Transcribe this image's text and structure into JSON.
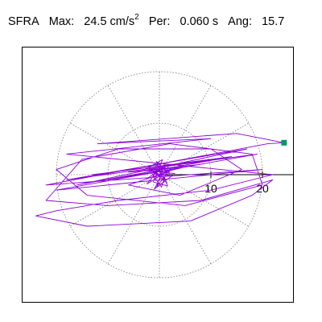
{
  "header": {
    "station": "SFRA",
    "max_label": "Max:",
    "max_value": "24.5",
    "max_unit": "cm/s",
    "max_unit_exp": "2",
    "per_label": "Per:",
    "per_value": "0.060 s",
    "ang_label": "Ang:",
    "ang_value": "15.7"
  },
  "chart_data": {
    "type": "scatter",
    "title": "",
    "xlabel": "",
    "ylabel": "",
    "polar_grid": true,
    "ring_ticks": [
      10,
      20
    ],
    "ring_radii": [
      10,
      20
    ],
    "spoke_count": 12,
    "xlim": [
      -24,
      27
    ],
    "grid": true,
    "trace_color": "#8c00d4",
    "marker_color": "#009966",
    "max_point": {
      "x": 24.2,
      "y": 6.2
    },
    "trace": [
      {
        "x": 0,
        "y": 0
      },
      {
        "x": -2,
        "y": 1.2
      },
      {
        "x": 1.5,
        "y": -1.6
      },
      {
        "x": -1,
        "y": 2
      },
      {
        "x": 2,
        "y": 0.6
      },
      {
        "x": -2.5,
        "y": -0.8
      },
      {
        "x": 1.8,
        "y": 1.9
      },
      {
        "x": 0.4,
        "y": -2.4
      },
      {
        "x": -1.6,
        "y": 0.4
      },
      {
        "x": 2.4,
        "y": -0.3
      },
      {
        "x": -0.6,
        "y": 2.6
      },
      {
        "x": 0.9,
        "y": -1.1
      },
      {
        "x": -2.2,
        "y": 1.6
      },
      {
        "x": 1,
        "y": 2.2
      },
      {
        "x": -0.5,
        "y": -2.3
      },
      {
        "x": 2.2,
        "y": 1.1
      },
      {
        "x": -2.4,
        "y": -1.8
      },
      {
        "x": 0.2,
        "y": 1.5
      },
      {
        "x": 1.6,
        "y": -2.2
      },
      {
        "x": -1.2,
        "y": -1.4
      },
      {
        "x": 0.6,
        "y": 2.9
      },
      {
        "x": -3,
        "y": 0.9
      },
      {
        "x": 3,
        "y": 0.2
      },
      {
        "x": -1,
        "y": -2.8
      },
      {
        "x": 0.8,
        "y": 0.5
      },
      {
        "x": 5,
        "y": 1.5
      },
      {
        "x": -6,
        "y": 0.5
      },
      {
        "x": 8,
        "y": 2
      },
      {
        "x": -10,
        "y": -1
      },
      {
        "x": 11,
        "y": 3
      },
      {
        "x": -13,
        "y": 0
      },
      {
        "x": 14,
        "y": 3.5
      },
      {
        "x": -16,
        "y": -2
      },
      {
        "x": 17,
        "y": 5
      },
      {
        "x": -18,
        "y": -1
      },
      {
        "x": 19,
        "y": 4
      },
      {
        "x": -20,
        "y": -3
      },
      {
        "x": 20,
        "y": 1
      },
      {
        "x": -22,
        "y": -2
      },
      {
        "x": 21,
        "y": 6
      },
      {
        "x": 24.2,
        "y": 6.2
      },
      {
        "x": 15,
        "y": 8
      },
      {
        "x": -12,
        "y": 6
      },
      {
        "x": 10,
        "y": 7
      },
      {
        "x": -18,
        "y": 4
      },
      {
        "x": 22,
        "y": 0
      },
      {
        "x": 10,
        "y": -3
      },
      {
        "x": -8,
        "y": -5
      },
      {
        "x": -20,
        "y": -7
      },
      {
        "x": -24,
        "y": -8
      },
      {
        "x": -14,
        "y": -10
      },
      {
        "x": 6,
        "y": -9
      },
      {
        "x": 18,
        "y": -4
      },
      {
        "x": 22,
        "y": -1
      },
      {
        "x": 8,
        "y": -5
      },
      {
        "x": -10,
        "y": -6
      },
      {
        "x": -22,
        "y": -5
      },
      {
        "x": -15,
        "y": 3
      },
      {
        "x": 2,
        "y": 6
      },
      {
        "x": 18,
        "y": 4
      },
      {
        "x": 20,
        "y": -2
      },
      {
        "x": 5,
        "y": -6
      },
      {
        "x": -14,
        "y": -4
      },
      {
        "x": -20,
        "y": 1
      },
      {
        "x": -8,
        "y": 5
      },
      {
        "x": 10,
        "y": 5
      },
      {
        "x": 16,
        "y": 1
      },
      {
        "x": 4,
        "y": -4
      },
      {
        "x": -6,
        "y": -2
      },
      {
        "x": 0,
        "y": 0
      }
    ]
  }
}
